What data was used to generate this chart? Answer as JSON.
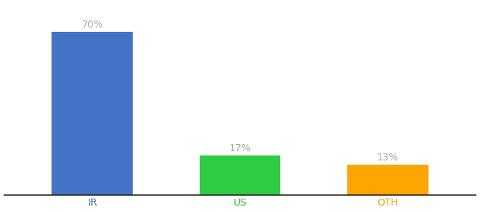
{
  "categories": [
    "IR",
    "US",
    "OTH"
  ],
  "values": [
    70,
    17,
    13
  ],
  "bar_colors": [
    "#4472C4",
    "#2ECC40",
    "#FFA500"
  ],
  "tick_colors": [
    "#4472C4",
    "#2ECC40",
    "#FFA500"
  ],
  "value_labels": [
    "70%",
    "17%",
    "13%"
  ],
  "background_color": "#ffffff",
  "label_color": "#aaaaaa",
  "label_fontsize": 10,
  "tick_fontsize": 10,
  "ylim": [
    0,
    82
  ],
  "bar_width": 0.55,
  "x_positions": [
    1,
    2,
    3
  ],
  "xlim": [
    0.4,
    3.6
  ]
}
